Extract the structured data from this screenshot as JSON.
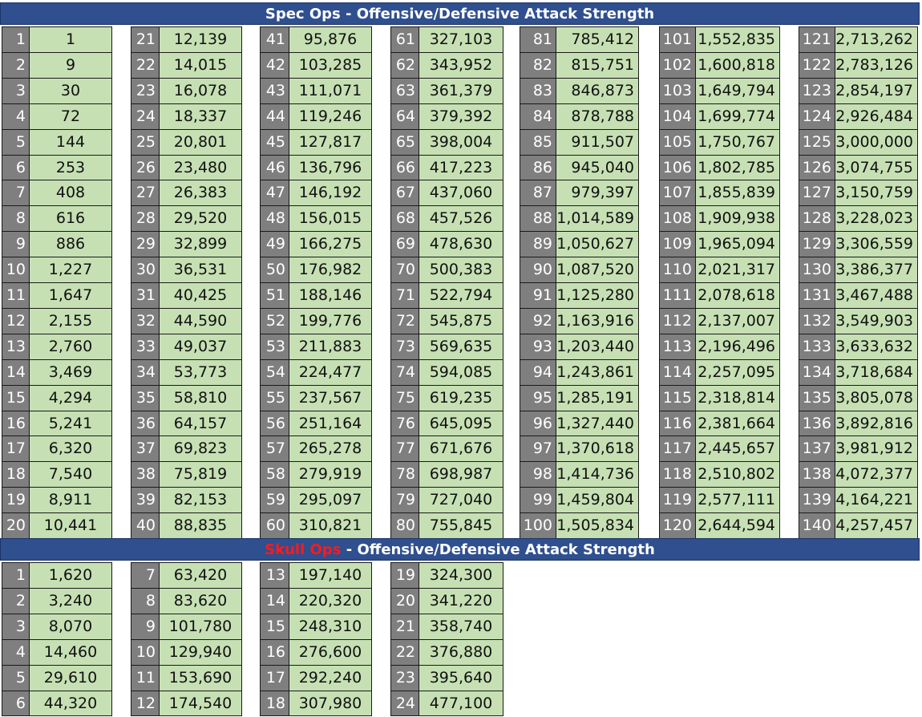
{
  "spec": {
    "title": "Spec Ops - Offensive/Defensive Attack Strength",
    "rows": [
      [
        "1",
        "1",
        "21",
        "12,139",
        "41",
        "95,876",
        "61",
        "327,103",
        "81",
        "785,412",
        "101",
        "1,552,835",
        "121",
        "2,713,262"
      ],
      [
        "2",
        "9",
        "22",
        "14,015",
        "42",
        "103,285",
        "62",
        "343,952",
        "82",
        "815,751",
        "102",
        "1,600,818",
        "122",
        "2,783,126"
      ],
      [
        "3",
        "30",
        "23",
        "16,078",
        "43",
        "111,071",
        "63",
        "361,379",
        "83",
        "846,873",
        "103",
        "1,649,794",
        "123",
        "2,854,197"
      ],
      [
        "4",
        "72",
        "24",
        "18,337",
        "44",
        "119,246",
        "64",
        "379,392",
        "84",
        "878,788",
        "104",
        "1,699,774",
        "124",
        "2,926,484"
      ],
      [
        "5",
        "144",
        "25",
        "20,801",
        "45",
        "127,817",
        "65",
        "398,004",
        "85",
        "911,507",
        "105",
        "1,750,767",
        "125",
        "3,000,000"
      ],
      [
        "6",
        "253",
        "26",
        "23,480",
        "46",
        "136,796",
        "66",
        "417,223",
        "86",
        "945,040",
        "106",
        "1,802,785",
        "126",
        "3,074,755"
      ],
      [
        "7",
        "408",
        "27",
        "26,383",
        "47",
        "146,192",
        "67",
        "437,060",
        "87",
        "979,397",
        "107",
        "1,855,839",
        "127",
        "3,150,759"
      ],
      [
        "8",
        "616",
        "28",
        "29,520",
        "48",
        "156,015",
        "68",
        "457,526",
        "88",
        "1,014,589",
        "108",
        "1,909,938",
        "128",
        "3,228,023"
      ],
      [
        "9",
        "886",
        "29",
        "32,899",
        "49",
        "166,275",
        "69",
        "478,630",
        "89",
        "1,050,627",
        "109",
        "1,965,094",
        "129",
        "3,306,559"
      ],
      [
        "10",
        "1,227",
        "30",
        "36,531",
        "50",
        "176,982",
        "70",
        "500,383",
        "90",
        "1,087,520",
        "110",
        "2,021,317",
        "130",
        "3,386,377"
      ],
      [
        "11",
        "1,647",
        "31",
        "40,425",
        "51",
        "188,146",
        "71",
        "522,794",
        "91",
        "1,125,280",
        "111",
        "2,078,618",
        "131",
        "3,467,488"
      ],
      [
        "12",
        "2,155",
        "32",
        "44,590",
        "52",
        "199,776",
        "72",
        "545,875",
        "92",
        "1,163,916",
        "112",
        "2,137,007",
        "132",
        "3,549,903"
      ],
      [
        "13",
        "2,760",
        "33",
        "49,037",
        "53",
        "211,883",
        "73",
        "569,635",
        "93",
        "1,203,440",
        "113",
        "2,196,496",
        "133",
        "3,633,632"
      ],
      [
        "14",
        "3,469",
        "34",
        "53,773",
        "54",
        "224,477",
        "74",
        "594,085",
        "94",
        "1,243,861",
        "114",
        "2,257,095",
        "134",
        "3,718,684"
      ],
      [
        "15",
        "4,294",
        "35",
        "58,810",
        "55",
        "237,567",
        "75",
        "619,235",
        "95",
        "1,285,191",
        "115",
        "2,318,814",
        "135",
        "3,805,078"
      ],
      [
        "16",
        "5,241",
        "36",
        "64,157",
        "56",
        "251,164",
        "76",
        "645,095",
        "96",
        "1,327,440",
        "116",
        "2,381,664",
        "136",
        "3,892,816"
      ],
      [
        "17",
        "6,320",
        "37",
        "69,823",
        "57",
        "265,278",
        "77",
        "671,676",
        "97",
        "1,370,618",
        "117",
        "2,445,657",
        "137",
        "3,981,912"
      ],
      [
        "18",
        "7,540",
        "38",
        "75,819",
        "58",
        "279,919",
        "78",
        "698,987",
        "98",
        "1,414,736",
        "118",
        "2,510,802",
        "138",
        "4,072,377"
      ],
      [
        "19",
        "8,911",
        "39",
        "82,153",
        "59",
        "295,097",
        "79",
        "727,040",
        "99",
        "1,459,804",
        "119",
        "2,577,111",
        "139",
        "4,164,221"
      ],
      [
        "20",
        "10,441",
        "40",
        "88,835",
        "60",
        "310,821",
        "80",
        "755,845",
        "100",
        "1,505,834",
        "120",
        "2,644,594",
        "140",
        "4,257,457"
      ]
    ]
  },
  "skull": {
    "title_accent": "Skull Ops",
    "title_rest": " - Offensive/Defensive Attack Strength",
    "rows": [
      [
        "1",
        "1,620",
        "7",
        "63,420",
        "13",
        "197,140",
        "19",
        "324,300"
      ],
      [
        "2",
        "3,240",
        "8",
        "83,620",
        "14",
        "220,320",
        "20",
        "341,220"
      ],
      [
        "3",
        "8,070",
        "9",
        "101,780",
        "15",
        "248,310",
        "21",
        "358,740"
      ],
      [
        "4",
        "14,460",
        "10",
        "129,940",
        "16",
        "276,600",
        "22",
        "376,880"
      ],
      [
        "5",
        "29,610",
        "11",
        "153,690",
        "17",
        "292,240",
        "23",
        "395,640"
      ],
      [
        "6",
        "44,320",
        "12",
        "174,540",
        "18",
        "307,980",
        "24",
        "477,100"
      ]
    ]
  },
  "colors": {
    "header_bg": "#2f4f8f",
    "header_text": "#ffffff",
    "header_accent": "#ff1a1a",
    "level_bg": "#7f7f7f",
    "value_bg": "#c6e0b4"
  }
}
